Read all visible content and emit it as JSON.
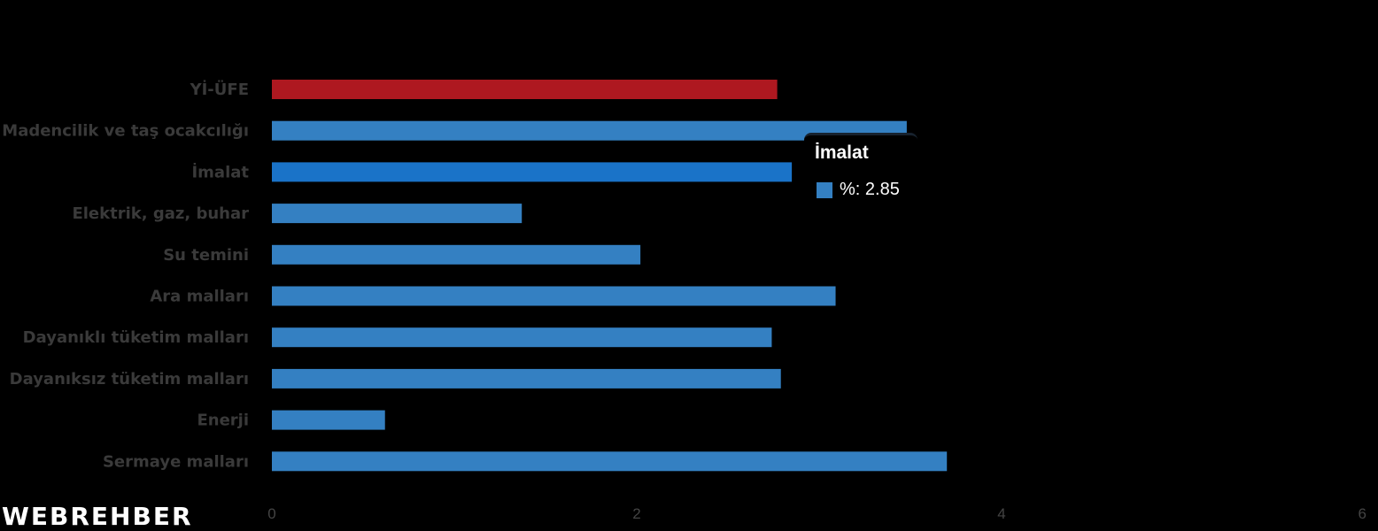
{
  "chart_data": {
    "type": "bar",
    "orientation": "horizontal",
    "categories": [
      "Yİ-ÜFE",
      "Madencilik ve taş ocakcılığı",
      "İmalat",
      "Elektrik, gaz, buhar",
      "Su temini",
      "Ara malları",
      "Dayanıklı tüketim malları",
      "Dayanıksız tüketim malları",
      "Enerji",
      "Sermaye malları"
    ],
    "values": [
      2.77,
      3.48,
      2.85,
      1.37,
      2.02,
      3.09,
      2.74,
      2.79,
      0.62,
      3.7
    ],
    "highlight_index": 0,
    "active_index": 2,
    "xlim": [
      0,
      6
    ],
    "xticks": [
      "0",
      "2",
      "4",
      "6"
    ],
    "colors": {
      "highlight": "#ae1820",
      "default": "#3480c2",
      "active": "#1a73c8",
      "background": "#000000"
    },
    "grid": false,
    "legend": "none"
  },
  "tooltip": {
    "title": "İmalat",
    "label": "%: 2.85",
    "swatch_color": "#3480c2"
  },
  "logo": {
    "text": "WEBREHBER"
  }
}
